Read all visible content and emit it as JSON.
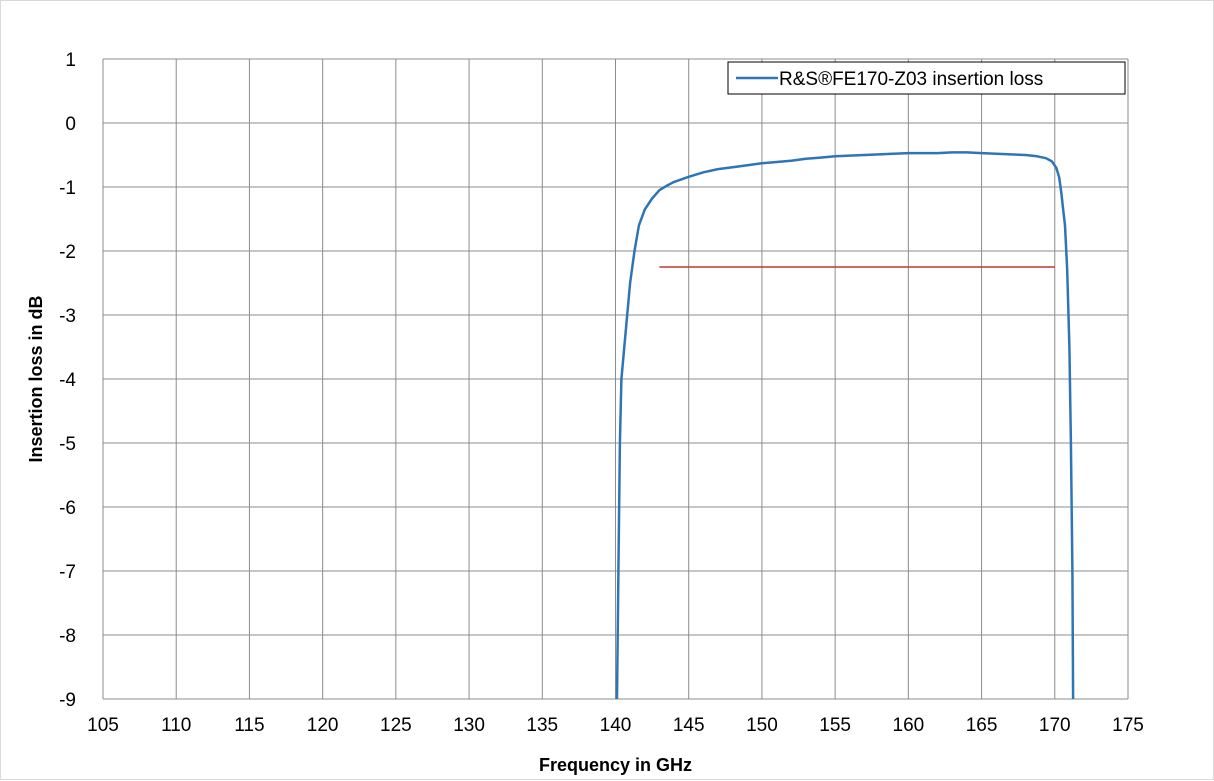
{
  "chart_data": {
    "type": "line",
    "title": "",
    "xlabel": "Frequency in GHz",
    "ylabel": "Insertion loss in dB",
    "xlim": [
      105,
      175
    ],
    "ylim": [
      -9,
      1
    ],
    "xticks": [
      "105",
      "110",
      "115",
      "120",
      "125",
      "130",
      "135",
      "140",
      "145",
      "150",
      "155",
      "160",
      "165",
      "170",
      "175"
    ],
    "yticks": [
      "1",
      "0",
      "-1",
      "-2",
      "-3",
      "-4",
      "-5",
      "-6",
      "-7",
      "-8",
      "-9"
    ],
    "grid": true,
    "legend_position": "top-right",
    "series": [
      {
        "name": "R&S®FE170-Z03 insertion loss",
        "color": "#2e75b6",
        "x": [
          140.1,
          140.2,
          140.3,
          140.4,
          140.6,
          140.8,
          141.0,
          141.3,
          141.6,
          142.0,
          142.5,
          143.0,
          143.5,
          144.0,
          145.0,
          146.0,
          147.0,
          148.0,
          149.0,
          150.0,
          151.0,
          152.0,
          153.0,
          154.0,
          155.0,
          156.0,
          157.0,
          158.0,
          159.0,
          160.0,
          161.0,
          162.0,
          163.0,
          164.0,
          165.0,
          166.0,
          167.0,
          168.0,
          168.8,
          169.4,
          169.8,
          170.1,
          170.3,
          170.45,
          170.55,
          170.7,
          170.85,
          171.0,
          171.1,
          171.2,
          171.25
        ],
        "y": [
          -9.0,
          -7.0,
          -5.0,
          -4.0,
          -3.5,
          -3.0,
          -2.5,
          -2.0,
          -1.6,
          -1.35,
          -1.18,
          -1.05,
          -0.98,
          -0.92,
          -0.84,
          -0.77,
          -0.72,
          -0.69,
          -0.66,
          -0.63,
          -0.61,
          -0.59,
          -0.56,
          -0.54,
          -0.52,
          -0.51,
          -0.5,
          -0.49,
          -0.48,
          -0.47,
          -0.47,
          -0.47,
          -0.46,
          -0.46,
          -0.47,
          -0.48,
          -0.49,
          -0.5,
          -0.52,
          -0.55,
          -0.6,
          -0.7,
          -0.85,
          -1.1,
          -1.3,
          -1.6,
          -2.3,
          -3.5,
          -5.0,
          -7.0,
          -9.0
        ]
      },
      {
        "name": "",
        "color": "#c0392b",
        "x": [
          143.0,
          170.0
        ],
        "y": [
          -2.25,
          -2.25
        ]
      }
    ]
  }
}
